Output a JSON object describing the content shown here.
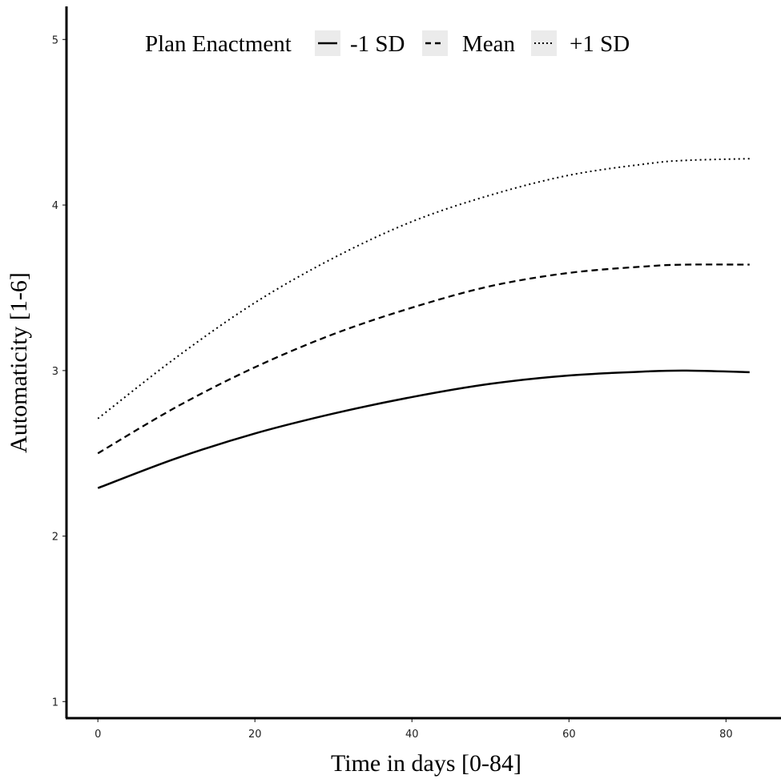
{
  "chart_data": {
    "type": "line",
    "title": "",
    "xlabel": "Time in days [0-84]",
    "ylabel": "Automaticity [1-6]",
    "xlim": [
      -4,
      87
    ],
    "ylim": [
      0.9,
      5.2
    ],
    "x_ticks": [
      0,
      20,
      40,
      60,
      80
    ],
    "y_ticks": [
      1,
      2,
      3,
      4,
      5
    ],
    "x_tick_labels": [
      "0",
      "20",
      "40",
      "60",
      "80"
    ],
    "y_tick_labels": [
      "1",
      "2",
      "3",
      "4",
      "5"
    ],
    "grid": false,
    "legend": {
      "title": "Plan Enactment",
      "position": "top",
      "orientation": "horizontal",
      "key_background": "#ebebeb"
    },
    "series": [
      {
        "name": "-1 SD",
        "linestyle": "solid",
        "x": [
          0,
          10,
          20,
          30,
          40,
          50,
          60,
          70,
          75,
          83
        ],
        "y": [
          2.29,
          2.47,
          2.62,
          2.74,
          2.84,
          2.92,
          2.97,
          2.995,
          3.0,
          2.99
        ]
      },
      {
        "name": "Mean",
        "linestyle": "dashed",
        "x": [
          0,
          10,
          20,
          30,
          40,
          50,
          60,
          70,
          75,
          83
        ],
        "y": [
          2.5,
          2.78,
          3.02,
          3.22,
          3.38,
          3.51,
          3.59,
          3.63,
          3.64,
          3.64
        ]
      },
      {
        "name": "+1 SD",
        "linestyle": "dotted",
        "x": [
          0,
          10,
          20,
          30,
          40,
          50,
          60,
          70,
          75,
          83
        ],
        "y": [
          2.71,
          3.08,
          3.41,
          3.68,
          3.9,
          4.06,
          4.18,
          4.25,
          4.27,
          4.28
        ]
      }
    ]
  }
}
